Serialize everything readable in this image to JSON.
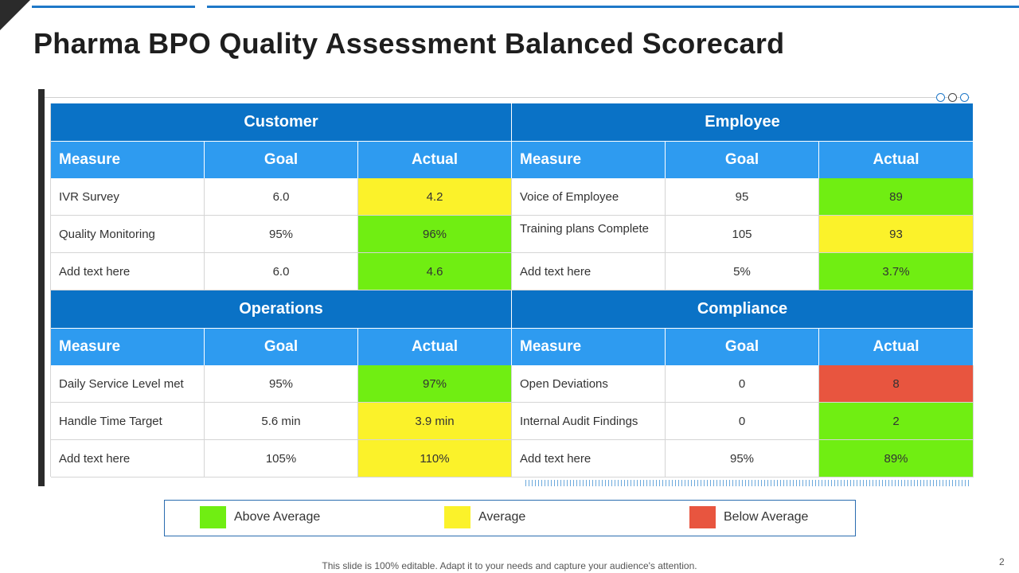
{
  "title": "Pharma BPO Quality Assessment Balanced Scorecard",
  "colors": {
    "above": "#70ee12",
    "average": "#fbf22a",
    "below": "#e8553f",
    "section": "#0a72c6",
    "header": "#2e9bf0"
  },
  "sections": {
    "customer": {
      "name": "Customer",
      "headers": [
        "Measure",
        "Goal",
        "Actual"
      ],
      "rows": [
        {
          "measure": "IVR Survey",
          "goal": "6.0",
          "actual": "4.2",
          "status": "average"
        },
        {
          "measure": "Quality Monitoring",
          "goal": "95%",
          "actual": "96%",
          "status": "above"
        },
        {
          "measure": "Add text here",
          "goal": "6.0",
          "actual": "4.6",
          "status": "above"
        }
      ]
    },
    "employee": {
      "name": "Employee",
      "headers": [
        "Measure",
        "Goal",
        "Actual"
      ],
      "rows": [
        {
          "measure": "Voice of Employee",
          "goal": "95",
          "actual": "89",
          "status": "above"
        },
        {
          "measure": "Training plans Complete",
          "goal": "105",
          "actual": "93",
          "status": "average"
        },
        {
          "measure": "Add text here",
          "goal": "5%",
          "actual": "3.7%",
          "status": "above"
        }
      ]
    },
    "operations": {
      "name": "Operations",
      "headers": [
        "Measure",
        "Goal",
        "Actual"
      ],
      "rows": [
        {
          "measure": "Daily Service Level met",
          "goal": "95%",
          "actual": "97%",
          "status": "above"
        },
        {
          "measure": "Handle Time Target",
          "goal": "5.6 min",
          "actual": "3.9 min",
          "status": "average"
        },
        {
          "measure": "Add text here",
          "goal": "105%",
          "actual": "110%",
          "status": "average"
        }
      ]
    },
    "compliance": {
      "name": "Compliance",
      "headers": [
        "Measure",
        "Goal",
        "Actual"
      ],
      "rows": [
        {
          "measure": "Open Deviations",
          "goal": "0",
          "actual": "8",
          "status": "below"
        },
        {
          "measure": "Internal Audit Findings",
          "goal": "0",
          "actual": "2",
          "status": "above"
        },
        {
          "measure": "Add text here",
          "goal": "95%",
          "actual": "89%",
          "status": "above"
        }
      ]
    }
  },
  "legend": {
    "above": "Above Average",
    "average": "Average",
    "below": "Below Average"
  },
  "footer": "This slide is 100% editable. Adapt it to your needs and capture your audience's attention.",
  "page_number": "2"
}
